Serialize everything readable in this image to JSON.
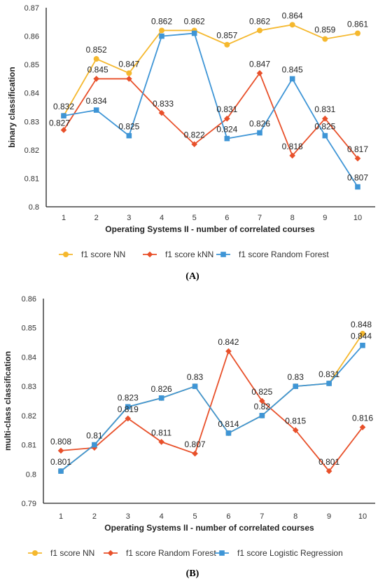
{
  "chart_data": [
    {
      "type": "line",
      "caption": "(A)",
      "xlabel": "Operating Systems II - number of correlated courses",
      "ylabel": "binary classification",
      "categories": [
        "1",
        "2",
        "3",
        "4",
        "5",
        "6",
        "7",
        "8",
        "9",
        "10"
      ],
      "yticks": [
        "0.8",
        "0.81",
        "0.82",
        "0.83",
        "0.84",
        "0.85",
        "0.86",
        "0.87"
      ],
      "ylim": [
        0.8,
        0.87
      ],
      "grid": false,
      "legend_position": "bottom",
      "series": [
        {
          "name": "f1 score NN",
          "marker": "circle",
          "color": "#F5B82E",
          "values": [
            0.832,
            0.852,
            0.847,
            0.862,
            0.862,
            0.857,
            0.862,
            0.864,
            0.859,
            0.861
          ],
          "labels": [
            "0.832",
            "0.852",
            "0.847",
            "0.862",
            "0.862",
            "0.857",
            "0.862",
            "0.864",
            "0.859",
            "0.861"
          ]
        },
        {
          "name": "f1 score kNN",
          "marker": "diamond",
          "color": "#E8502A",
          "values": [
            0.827,
            0.845,
            0.845,
            0.833,
            0.822,
            0.831,
            0.847,
            0.818,
            0.831,
            0.817
          ],
          "labels": [
            "0.827",
            "0.845",
            "",
            "0.833",
            "0.822",
            "0.831",
            "0.847",
            "0.818",
            "0.831",
            "0.817"
          ]
        },
        {
          "name": "f1 score Random Forest",
          "marker": "square",
          "color": "#3E95D6",
          "values": [
            0.832,
            0.834,
            0.825,
            0.86,
            0.861,
            0.824,
            0.826,
            0.845,
            0.825,
            0.807
          ],
          "labels": [
            "",
            "0.834",
            "0.825",
            "",
            "",
            "0.824",
            "0.826",
            "0.845",
            "0.825",
            "0.807"
          ]
        }
      ]
    },
    {
      "type": "line",
      "caption": "(B)",
      "xlabel": "Operating Systems II - number of correlated courses",
      "ylabel": "multi-class classification",
      "categories": [
        "1",
        "2",
        "3",
        "4",
        "5",
        "6",
        "7",
        "8",
        "9",
        "10"
      ],
      "yticks": [
        "0.79",
        "0.8",
        "0.81",
        "0.82",
        "0.83",
        "0.84",
        "0.85",
        "0.86"
      ],
      "ylim": [
        0.79,
        0.86
      ],
      "grid": false,
      "legend_position": "bottom",
      "series": [
        {
          "name": "f1 score NN",
          "marker": "circle",
          "color": "#F5B82E",
          "values": [
            0.801,
            0.81,
            0.823,
            0.826,
            0.83,
            0.814,
            0.82,
            0.83,
            0.831,
            0.848
          ],
          "labels": [
            "",
            "",
            "",
            "",
            "",
            "",
            "",
            "",
            "",
            "0.848"
          ]
        },
        {
          "name": "f1 score Random Forest",
          "marker": "diamond",
          "color": "#E8502A",
          "values": [
            0.808,
            0.809,
            0.819,
            0.811,
            0.807,
            0.842,
            0.825,
            0.815,
            0.801,
            0.816
          ],
          "labels": [
            "0.808",
            "",
            "0.819",
            "0.811",
            "0.807",
            "0.842",
            "0.825",
            "0.815",
            "0.801",
            "0.816"
          ]
        },
        {
          "name": "f1 score Logistic Regression",
          "marker": "square",
          "color": "#3E95D6",
          "values": [
            0.801,
            0.81,
            0.823,
            0.826,
            0.83,
            0.814,
            0.82,
            0.83,
            0.831,
            0.844
          ],
          "labels": [
            "0.801",
            "0.81",
            "0.823",
            "0.826",
            "0.83",
            "0.814",
            "0.82",
            "0.83",
            "0.831",
            "0.844"
          ]
        }
      ]
    }
  ]
}
